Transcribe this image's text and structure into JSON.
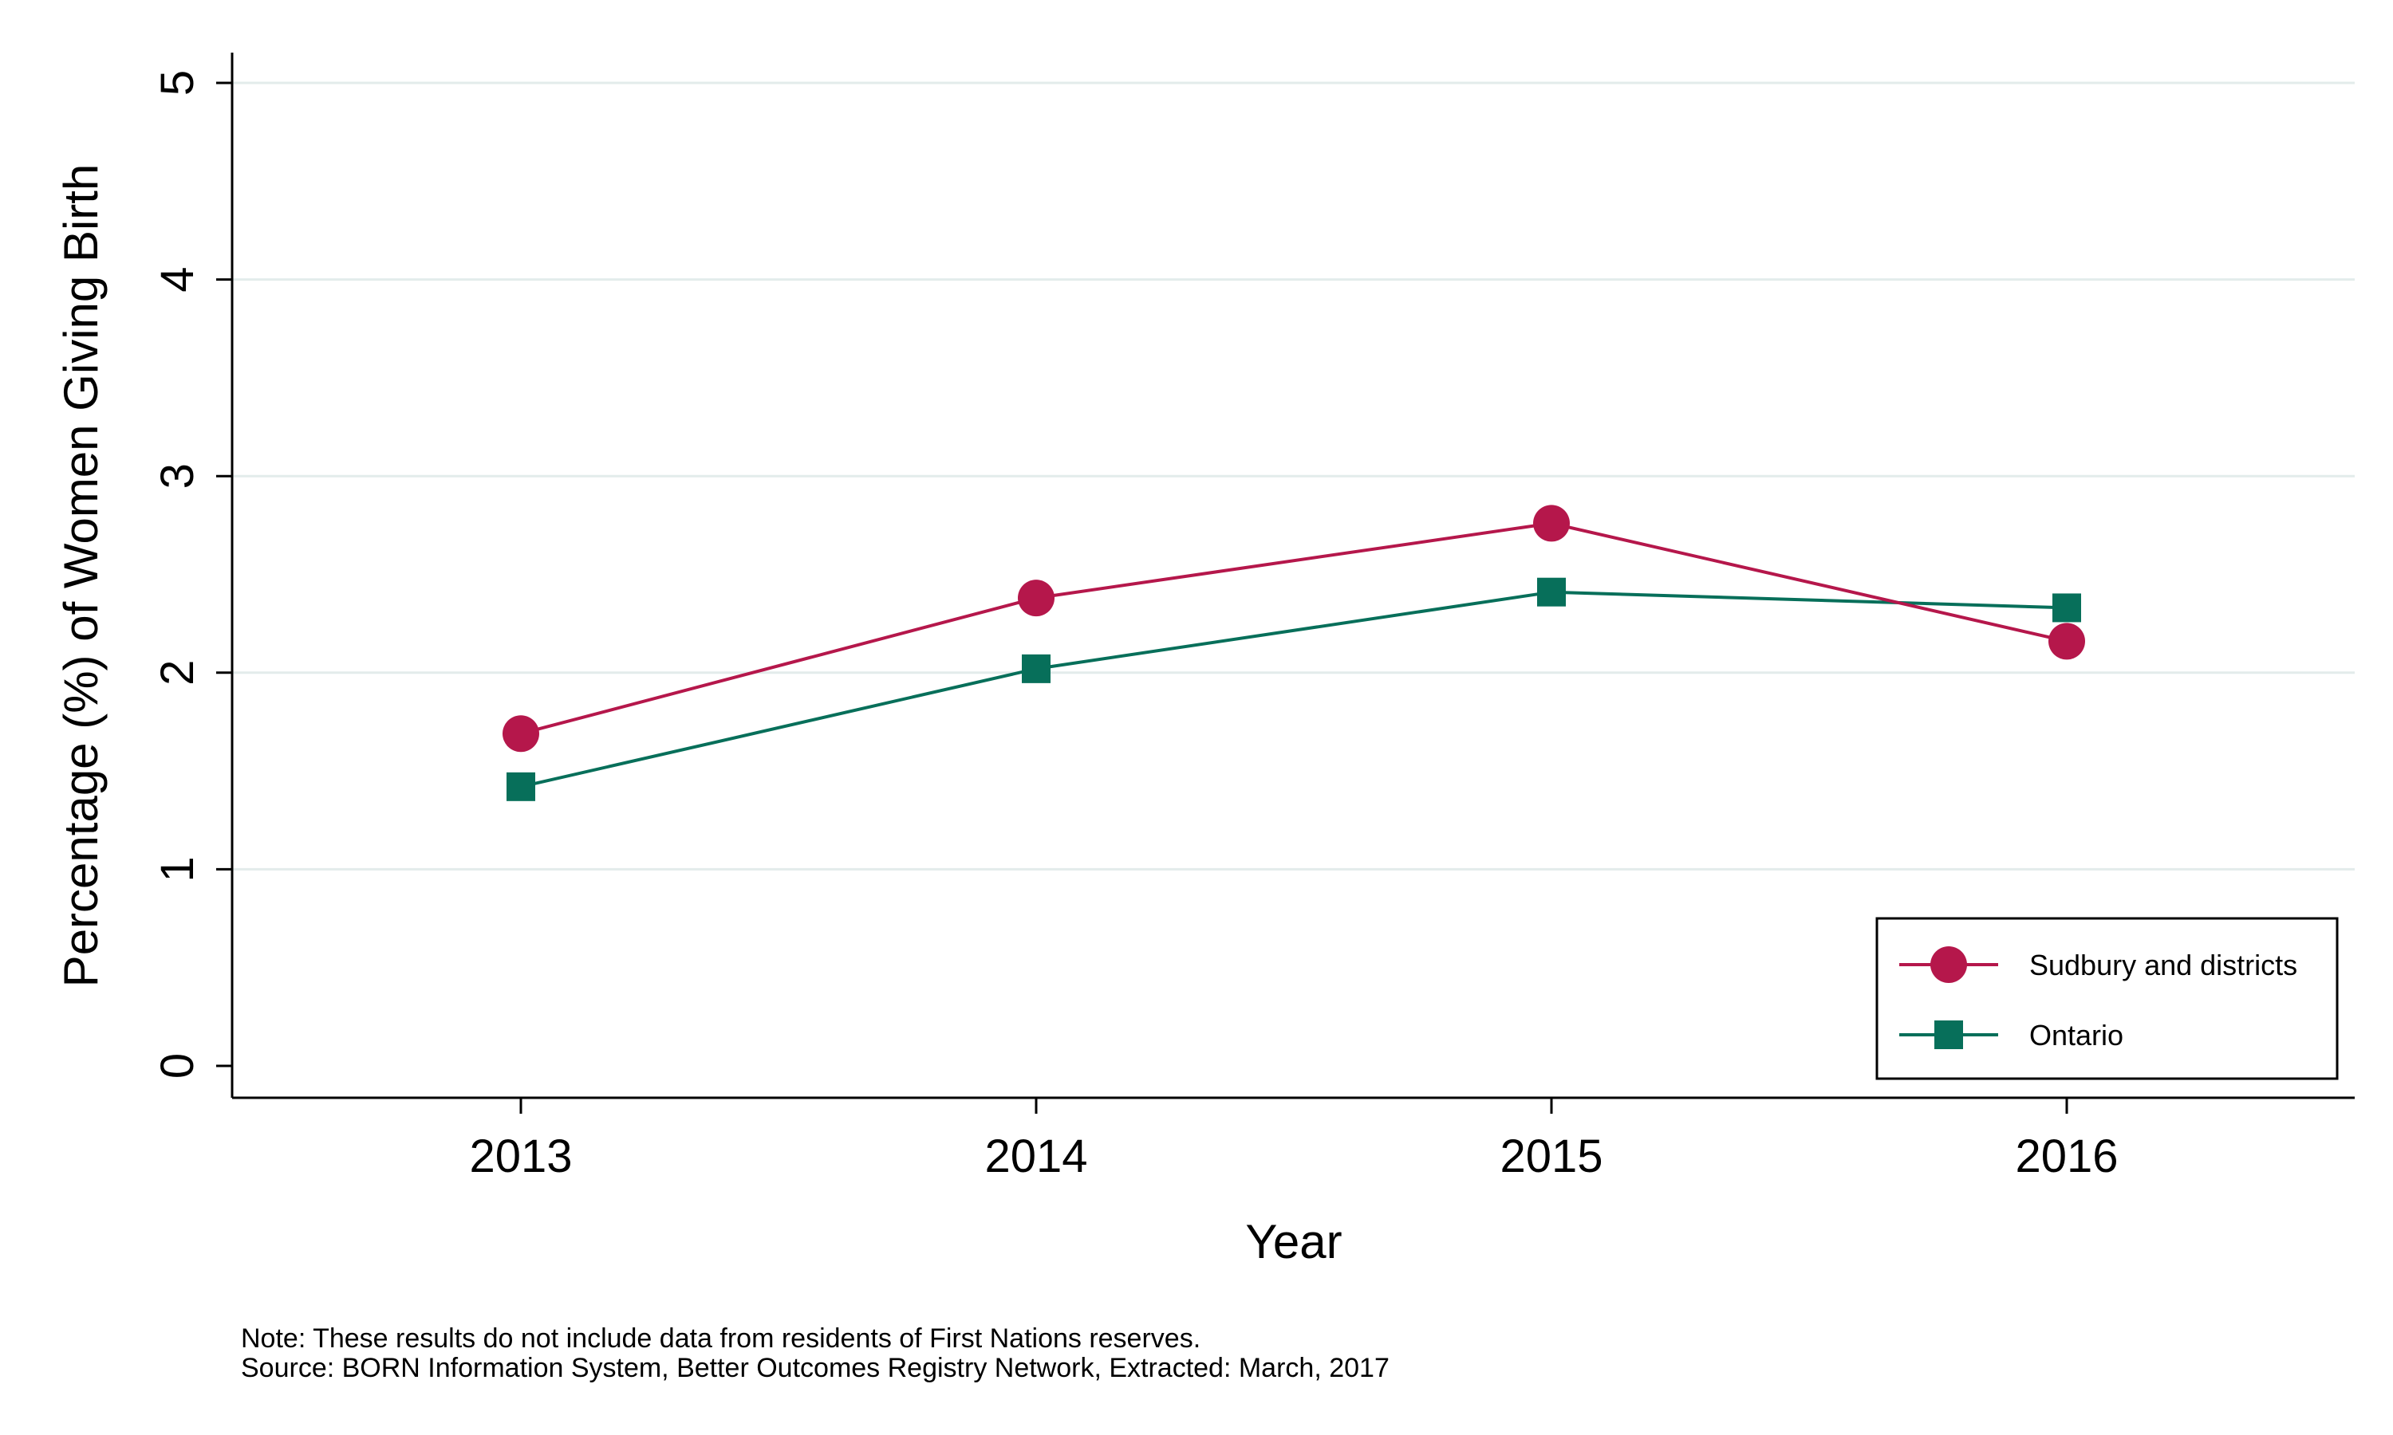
{
  "chart_data": {
    "type": "line",
    "categories": [
      "2013",
      "2014",
      "2015",
      "2016"
    ],
    "series": [
      {
        "name": "Sudbury and districts",
        "values": [
          1.69,
          2.38,
          2.76,
          2.16
        ],
        "color": "#b5174b",
        "marker": "circle"
      },
      {
        "name": "Ontario",
        "values": [
          1.42,
          2.02,
          2.41,
          2.33
        ],
        "color": "#076f5a",
        "marker": "square"
      }
    ],
    "xlabel": "Year",
    "ylabel": "Percentage (%) of Women Giving Birth",
    "ylim": [
      0,
      5
    ],
    "yticks": [
      "0",
      "1",
      "2",
      "3",
      "4",
      "5"
    ],
    "grid": true,
    "legend_position": "bottom-right"
  },
  "notes": {
    "note": "Note: These results do not include data from residents of First Nations reserves.",
    "source": "Source: BORN Information System, Better Outcomes Registry Network, Extracted: March, 2017"
  },
  "colors": {
    "grid": "#e3eceb",
    "axis": "#000000"
  }
}
